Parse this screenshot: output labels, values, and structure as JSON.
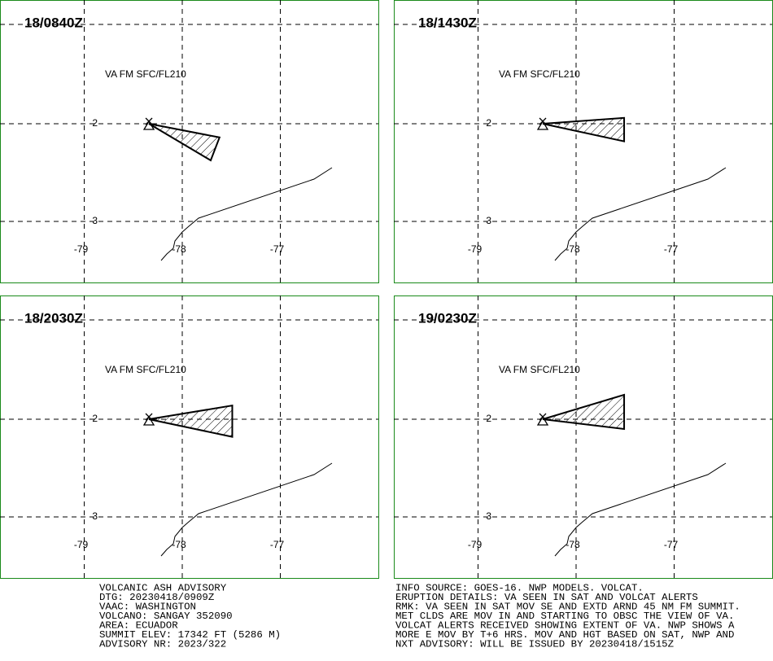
{
  "panels": [
    {
      "time": "18/0840Z",
      "level": "VA FM SFC/FL210",
      "ash": {
        "lon": [
          -78.34,
          -77.62,
          -77.71
        ],
        "lat": [
          -2.0,
          -2.14,
          -2.375
        ]
      }
    },
    {
      "time": "18/1430Z",
      "level": "VA FM SFC/FL210",
      "ash": {
        "lon": [
          -78.34,
          -77.51,
          -77.51
        ],
        "lat": [
          -2.0,
          -1.94,
          -2.18
        ]
      }
    },
    {
      "time": "18/2030Z",
      "level": "VA FM SFC/FL210",
      "ash": {
        "lon": [
          -78.34,
          -77.49,
          -77.49
        ],
        "lat": [
          -2.0,
          -1.86,
          -2.18
        ]
      }
    },
    {
      "time": "19/0230Z",
      "level": "VA FM SFC/FL210",
      "ash": {
        "lon": [
          -78.34,
          -77.51,
          -77.51
        ],
        "lat": [
          -2.0,
          -1.75,
          -2.1
        ]
      }
    }
  ],
  "lon_ticks": [
    -79,
    -78,
    -77
  ],
  "lat_ticks": [
    -2,
    -3
  ],
  "info_left": [
    "VOLCANIC ASH ADVISORY",
    "DTG: 20230418/0909Z",
    "VAAC: WASHINGTON",
    "VOLCANO: SANGAY 352090",
    "AREA: ECUADOR",
    "SUMMIT ELEV: 17342 FT (5286 M)",
    "ADVISORY NR: 2023/322"
  ],
  "info_right": [
    "INFO SOURCE: GOES-16. NWP MODELS. VOLCAT.",
    "ERUPTION DETAILS: VA SEEN IN SAT AND VOLCAT ALERTS",
    "RMK: VA SEEN IN SAT MOV SE AND EXTD ARND 45 NM FM SUMMIT.",
    "MET CLDS ARE MOV IN AND STARTING TO OBSC THE VIEW OF VA.",
    "VOLCAT ALERTS RECEIVED SHOWING EXTENT OF VA. NWP SHOWS A",
    "MORE E MOV BY T+6 HRS. MOV AND HGT BASED ON SAT, NWP AND",
    "NXT ADVISORY: WILL BE ISSUED BY 20230418/1515Z"
  ]
}
